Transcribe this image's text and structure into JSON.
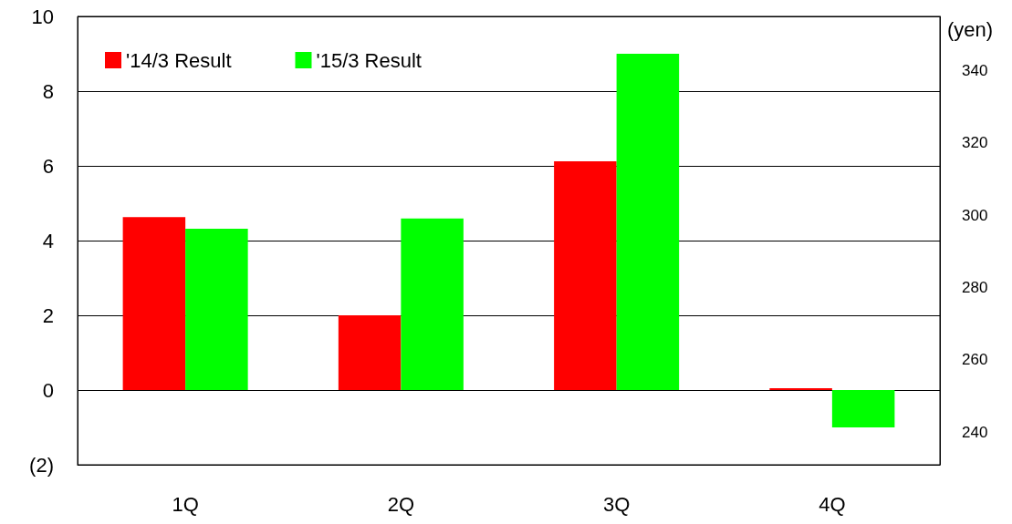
{
  "chart_data": {
    "type": "bar",
    "categories": [
      "1Q",
      "2Q",
      "3Q",
      "4Q"
    ],
    "series": [
      {
        "name": "'14/3 Result",
        "color": "#ff0000",
        "values": [
          4.63,
          2.0,
          6.12,
          0.05
        ]
      },
      {
        "name": "'15/3 Result",
        "color": "#00ff00",
        "values": [
          4.32,
          4.59,
          9.0,
          -1.0
        ]
      }
    ],
    "ylim": [
      -2,
      10
    ],
    "yticks": [
      {
        "value": -2,
        "label": "(2)"
      },
      0,
      2,
      4,
      6,
      8,
      10
    ],
    "y2label": "(yen)",
    "y2lim": [
      231,
      355
    ],
    "y2ticks": [
      240,
      260,
      280,
      300,
      320,
      340
    ],
    "grid": "y",
    "legend": "top left"
  }
}
